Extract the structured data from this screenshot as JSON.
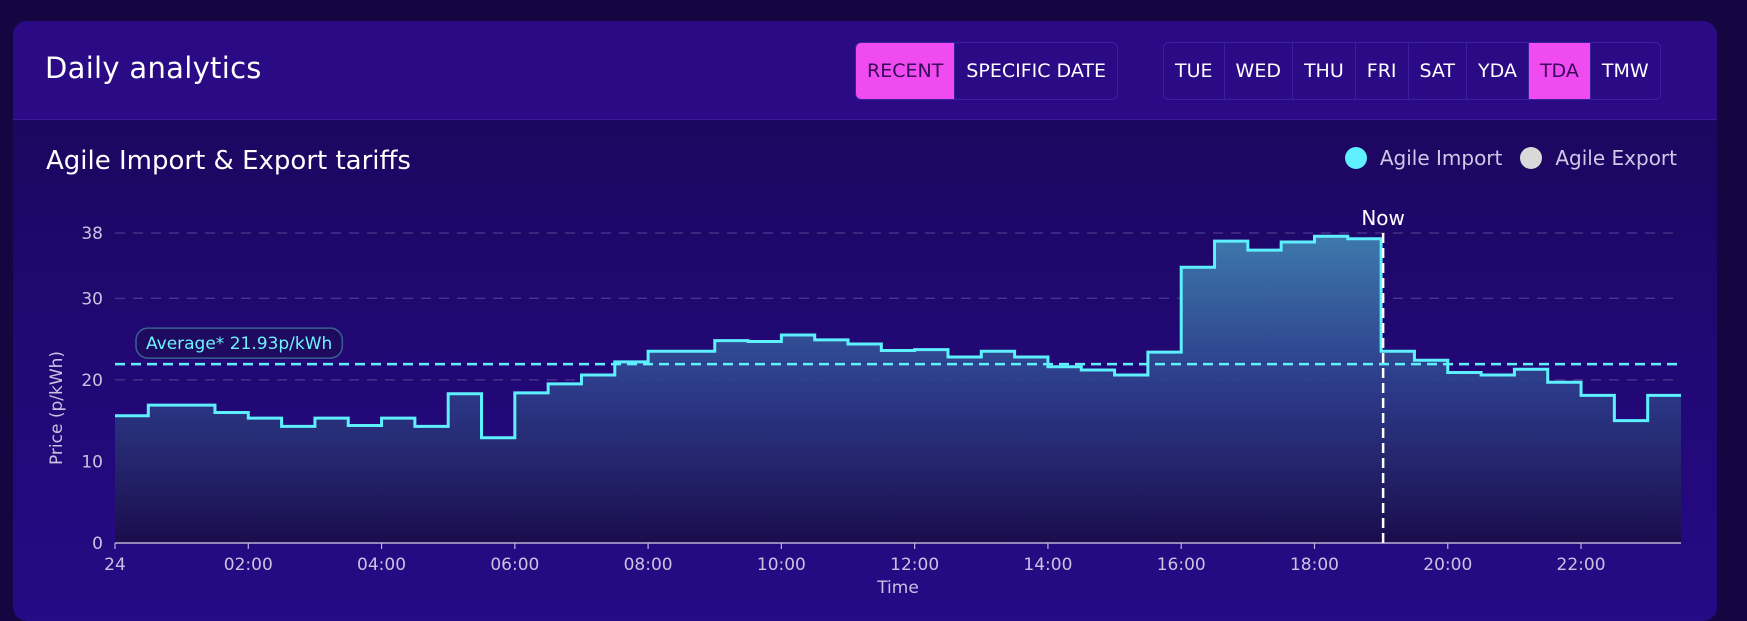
{
  "header": {
    "title": "Daily analytics",
    "mode_buttons": [
      {
        "label": "RECENT",
        "active": true
      },
      {
        "label": "SPECIFIC DATE",
        "active": false
      }
    ],
    "day_buttons": [
      {
        "label": "TUE",
        "active": false
      },
      {
        "label": "WED",
        "active": false
      },
      {
        "label": "THU",
        "active": false
      },
      {
        "label": "FRI",
        "active": false
      },
      {
        "label": "SAT",
        "active": false
      },
      {
        "label": "YDA",
        "active": false
      },
      {
        "label": "TDA",
        "active": true
      },
      {
        "label": "TMW",
        "active": false
      }
    ]
  },
  "chart": {
    "title": "Agile Import & Export tariffs",
    "legend": [
      {
        "label": "Agile Import",
        "color": "#5ef0ff"
      },
      {
        "label": "Agile Export",
        "color": "#d9d9d9"
      }
    ]
  },
  "chart_data": {
    "type": "line",
    "step": true,
    "xlabel": "Time",
    "ylabel": "Price (p/kWh)",
    "xlim": [
      0,
      23.5
    ],
    "ylim": [
      0,
      38
    ],
    "yticks": [
      0,
      10,
      20,
      30,
      38
    ],
    "xticks": [
      {
        "value": 0,
        "label": "24"
      },
      {
        "value": 2,
        "label": "02:00"
      },
      {
        "value": 4,
        "label": "04:00"
      },
      {
        "value": 6,
        "label": "06:00"
      },
      {
        "value": 8,
        "label": "08:00"
      },
      {
        "value": 10,
        "label": "10:00"
      },
      {
        "value": 12,
        "label": "12:00"
      },
      {
        "value": 14,
        "label": "14:00"
      },
      {
        "value": 16,
        "label": "16:00"
      },
      {
        "value": 18,
        "label": "18:00"
      },
      {
        "value": 20,
        "label": "20:00"
      },
      {
        "value": 22,
        "label": "22:00"
      }
    ],
    "grid": true,
    "series": [
      {
        "name": "Agile Import",
        "color": "#5ef0ff",
        "step_interval_hours": 0.5,
        "values": [
          15.6,
          16.9,
          16.9,
          16.0,
          15.3,
          14.3,
          15.3,
          14.4,
          15.3,
          14.3,
          18.3,
          12.9,
          18.4,
          19.5,
          20.6,
          22.2,
          23.5,
          23.5,
          24.8,
          24.7,
          25.5,
          24.9,
          24.4,
          23.6,
          23.7,
          22.8,
          23.5,
          22.8,
          21.6,
          21.2,
          20.6,
          23.4,
          33.8,
          37.0,
          35.9,
          36.9,
          37.6,
          37.3,
          23.5,
          22.4,
          20.9,
          20.6,
          21.3,
          19.7,
          18.1,
          15.0,
          18.1
        ]
      }
    ],
    "annotations": [
      {
        "type": "hline",
        "value": 21.93,
        "label": "Average* 21.93p/kWh",
        "color": "#5ef0ff",
        "style": "dashed"
      },
      {
        "type": "vline",
        "value": 19.03,
        "label": "Now",
        "color": "#ffffff",
        "style": "dashed"
      }
    ]
  }
}
